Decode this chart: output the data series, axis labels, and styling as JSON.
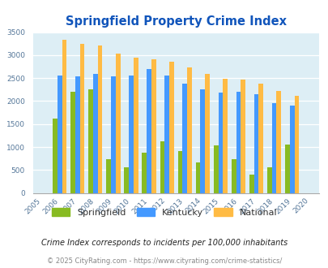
{
  "title": "Springfield Property Crime Index",
  "plot_years": [
    2006,
    2007,
    2008,
    2009,
    2010,
    2011,
    2012,
    2013,
    2014,
    2015,
    2016,
    2017,
    2018,
    2019
  ],
  "all_tick_years": [
    2005,
    2006,
    2007,
    2008,
    2009,
    2010,
    2011,
    2012,
    2013,
    2014,
    2015,
    2016,
    2017,
    2018,
    2019,
    2020
  ],
  "springfield": [
    1620,
    2200,
    2250,
    740,
    560,
    870,
    1130,
    910,
    660,
    1030,
    740,
    400,
    560,
    1050
  ],
  "kentucky": [
    2550,
    2530,
    2590,
    2530,
    2550,
    2700,
    2560,
    2380,
    2260,
    2190,
    2200,
    2150,
    1960,
    1900
  ],
  "national": [
    3330,
    3250,
    3210,
    3040,
    2950,
    2910,
    2860,
    2740,
    2590,
    2490,
    2460,
    2380,
    2220,
    2110
  ],
  "springfield_color": "#88bb22",
  "kentucky_color": "#4499ff",
  "national_color": "#ffbb44",
  "plot_bg_color": "#ddeef5",
  "fig_bg_color": "#ffffff",
  "grid_color": "#ffffff",
  "ylim": [
    0,
    3500
  ],
  "yticks": [
    0,
    500,
    1000,
    1500,
    2000,
    2500,
    3000,
    3500
  ],
  "title_color": "#1155bb",
  "title_fontsize": 10.5,
  "tick_fontsize": 6.5,
  "legend_fontsize": 8,
  "footnote1": "Crime Index corresponds to incidents per 100,000 inhabitants",
  "footnote2": "© 2025 CityRating.com - https://www.cityrating.com/crime-statistics/",
  "footnote1_color": "#222222",
  "footnote2_color": "#888888",
  "footnote1_fontsize": 7,
  "footnote2_fontsize": 6,
  "bar_width": 0.26
}
